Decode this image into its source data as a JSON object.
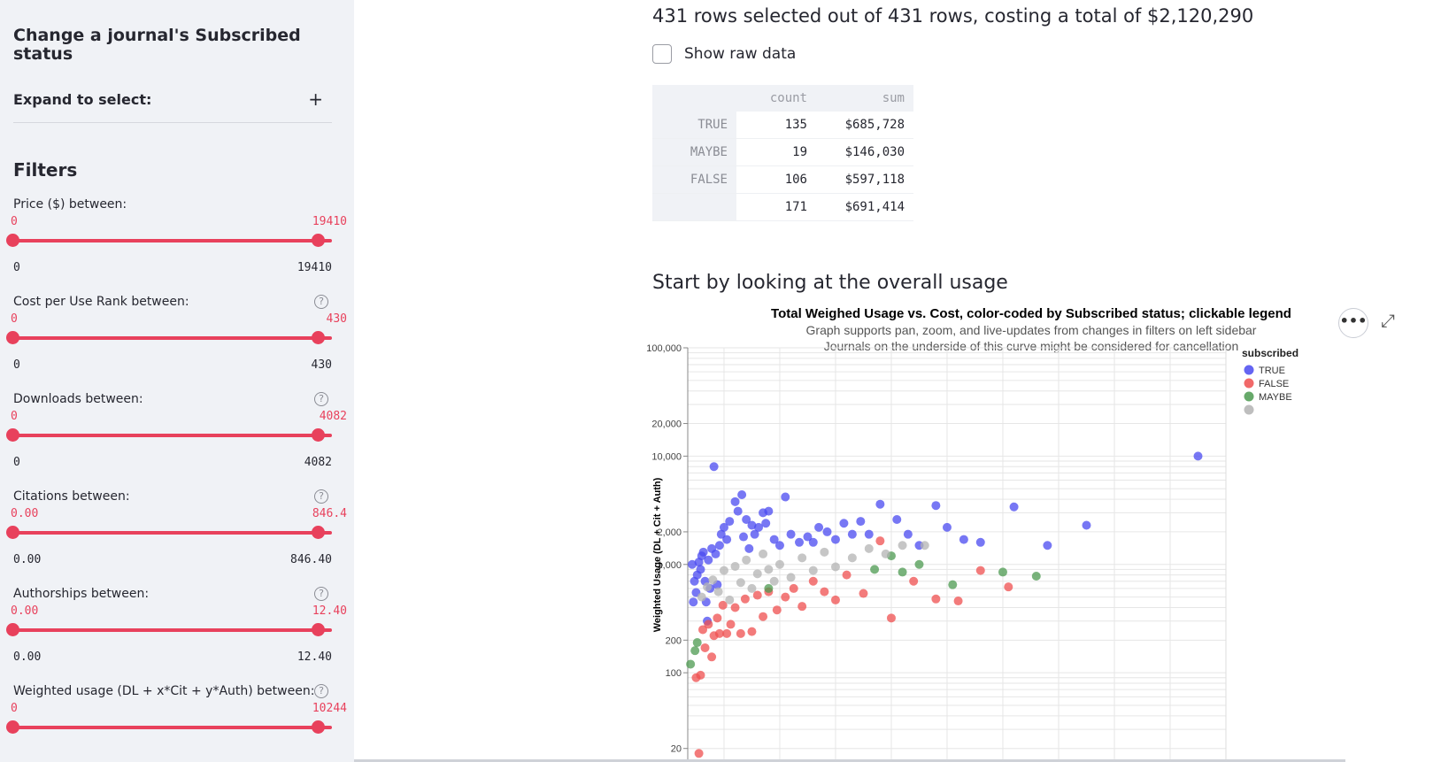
{
  "sidebar": {
    "title": "Change a journal's Subscribed status",
    "expander_label": "Expand to select:",
    "expander_icon": "+",
    "filters_title": "Filters",
    "help_glyph": "?",
    "sliders": [
      {
        "label": "Price ($) between:",
        "min_value": "0",
        "max_value": "19410",
        "range_min": "0",
        "range_max": "19410",
        "has_help": false
      },
      {
        "label": "Cost per Use Rank between:",
        "min_value": "0",
        "max_value": "430",
        "range_min": "0",
        "range_max": "430",
        "has_help": true
      },
      {
        "label": "Downloads between:",
        "min_value": "0",
        "max_value": "4082",
        "range_min": "0",
        "range_max": "4082",
        "has_help": true
      },
      {
        "label": "Citations between:",
        "min_value": "0.00",
        "max_value": "846.4",
        "range_min": "0.00",
        "range_max": "846.40",
        "has_help": true
      },
      {
        "label": "Authorships between:",
        "min_value": "0.00",
        "max_value": "12.40",
        "range_min": "0.00",
        "range_max": "12.40",
        "has_help": true
      },
      {
        "label": "Weighted usage (DL + x*Cit + y*Auth) between:",
        "min_value": "0",
        "max_value": "10244",
        "range_min": "",
        "range_max": "",
        "has_help": true
      }
    ]
  },
  "main": {
    "rows_title": "431 rows selected out of 431 rows, costing a total of $2,120,290",
    "raw_checkbox_label": "Show raw data",
    "raw_checked": false,
    "summary": {
      "headers": [
        "",
        "count",
        "sum"
      ],
      "rows": [
        [
          "TRUE",
          "135",
          "$685,728"
        ],
        [
          "MAYBE",
          "19",
          "$146,030"
        ],
        [
          "FALSE",
          "106",
          "$597,118"
        ],
        [
          "",
          "171",
          "$691,414"
        ]
      ]
    },
    "usage_title": "Start by looking at the overall usage",
    "menu_glyph": "•••",
    "expand_glyph": "⤢"
  },
  "chart_data": {
    "type": "scatter",
    "title": "Total Weighed Usage vs. Cost, color-coded by Subscribed status; clickable legend",
    "subtitle_lines": [
      "Graph supports pan, zoom, and live-updates from changes in filters on left sidebar",
      "Journals on the underside of this curve might be considered for cancellation"
    ],
    "ylabel": "Weighted Usage (DL + Cit + Auth)",
    "xlabel": "",
    "y_scale": "log",
    "ylim": [
      15,
      100000
    ],
    "y_ticks": [
      {
        "value": 100000,
        "label": "100,000"
      },
      {
        "value": 20000,
        "label": "20,000"
      },
      {
        "value": 10000,
        "label": "10,000"
      },
      {
        "value": 2000,
        "label": "2,000"
      },
      {
        "value": 1000,
        "label": "1,000"
      },
      {
        "value": 200,
        "label": "200"
      },
      {
        "value": 100,
        "label": "100"
      },
      {
        "value": 20,
        "label": "20"
      }
    ],
    "grid": true,
    "legend": {
      "title": "subscribed",
      "placement": "top-right"
    },
    "series": [
      {
        "name": "TRUE",
        "color": "#4a4af0",
        "points": [
          [
            0.43,
            1000
          ],
          [
            0.45,
            450
          ],
          [
            0.47,
            700
          ],
          [
            0.5,
            550
          ],
          [
            0.52,
            800
          ],
          [
            0.55,
            1050
          ],
          [
            0.58,
            900
          ],
          [
            0.6,
            1200
          ],
          [
            0.63,
            1300
          ],
          [
            0.66,
            700
          ],
          [
            0.68,
            450
          ],
          [
            0.7,
            300
          ],
          [
            0.72,
            1100
          ],
          [
            0.75,
            600
          ],
          [
            0.78,
            1400
          ],
          [
            0.82,
            8000
          ],
          [
            0.85,
            1250
          ],
          [
            0.88,
            650
          ],
          [
            0.92,
            1500
          ],
          [
            0.95,
            1900
          ],
          [
            1.0,
            2200
          ],
          [
            1.05,
            1700
          ],
          [
            1.1,
            2500
          ],
          [
            1.2,
            3800
          ],
          [
            1.25,
            3100
          ],
          [
            1.32,
            4400
          ],
          [
            1.35,
            1800
          ],
          [
            1.4,
            2600
          ],
          [
            1.45,
            1400
          ],
          [
            1.5,
            2300
          ],
          [
            1.55,
            1900
          ],
          [
            1.62,
            2200
          ],
          [
            1.7,
            3000
          ],
          [
            1.75,
            2400
          ],
          [
            1.8,
            3100
          ],
          [
            1.9,
            1700
          ],
          [
            2.0,
            1500
          ],
          [
            2.1,
            4200
          ],
          [
            2.2,
            1900
          ],
          [
            2.35,
            1600
          ],
          [
            2.5,
            1800
          ],
          [
            2.6,
            1600
          ],
          [
            2.7,
            2200
          ],
          [
            2.85,
            2000
          ],
          [
            3.0,
            1700
          ],
          [
            3.15,
            2400
          ],
          [
            3.3,
            1900
          ],
          [
            3.45,
            2500
          ],
          [
            3.6,
            1900
          ],
          [
            3.8,
            3600
          ],
          [
            4.1,
            2600
          ],
          [
            4.3,
            1900
          ],
          [
            4.5,
            1500
          ],
          [
            4.8,
            3500
          ],
          [
            5.0,
            2200
          ],
          [
            5.3,
            1700
          ],
          [
            5.6,
            1600
          ],
          [
            6.2,
            3400
          ],
          [
            6.8,
            1500
          ],
          [
            7.5,
            2300
          ],
          [
            9.5,
            10000
          ]
        ]
      },
      {
        "name": "FALSE",
        "color": "#ef4f4f",
        "points": [
          [
            0.5,
            90
          ],
          [
            0.55,
            18
          ],
          [
            0.58,
            95
          ],
          [
            0.62,
            250
          ],
          [
            0.66,
            170
          ],
          [
            0.72,
            280
          ],
          [
            0.78,
            140
          ],
          [
            0.82,
            220
          ],
          [
            0.88,
            320
          ],
          [
            0.92,
            230
          ],
          [
            0.98,
            420
          ],
          [
            1.05,
            230
          ],
          [
            1.12,
            280
          ],
          [
            1.2,
            400
          ],
          [
            1.3,
            230
          ],
          [
            1.38,
            480
          ],
          [
            1.5,
            240
          ],
          [
            1.6,
            520
          ],
          [
            1.7,
            330
          ],
          [
            1.8,
            560
          ],
          [
            1.95,
            380
          ],
          [
            2.1,
            500
          ],
          [
            2.25,
            600
          ],
          [
            2.4,
            410
          ],
          [
            2.6,
            700
          ],
          [
            2.8,
            560
          ],
          [
            3.0,
            470
          ],
          [
            3.2,
            800
          ],
          [
            3.5,
            540
          ],
          [
            3.8,
            1650
          ],
          [
            4.0,
            320
          ],
          [
            4.4,
            700
          ],
          [
            4.8,
            480
          ],
          [
            5.2,
            460
          ],
          [
            5.6,
            880
          ],
          [
            6.1,
            620
          ]
        ]
      },
      {
        "name": "MAYBE",
        "color": "#4c9a50",
        "points": [
          [
            0.4,
            120
          ],
          [
            0.48,
            160
          ],
          [
            0.52,
            190
          ],
          [
            1.8,
            600
          ],
          [
            3.7,
            900
          ],
          [
            4.0,
            1200
          ],
          [
            4.2,
            850
          ],
          [
            4.5,
            1000
          ],
          [
            5.1,
            650
          ],
          [
            6.0,
            850
          ],
          [
            6.6,
            780
          ]
        ]
      },
      {
        "name": "",
        "color": "#b3b3b3",
        "points": [
          [
            0.6,
            500
          ],
          [
            0.7,
            620
          ],
          [
            0.8,
            720
          ],
          [
            0.9,
            560
          ],
          [
            1.0,
            880
          ],
          [
            1.1,
            470
          ],
          [
            1.2,
            960
          ],
          [
            1.3,
            680
          ],
          [
            1.4,
            1100
          ],
          [
            1.5,
            600
          ],
          [
            1.6,
            820
          ],
          [
            1.7,
            1250
          ],
          [
            1.8,
            900
          ],
          [
            1.9,
            700
          ],
          [
            2.0,
            1000
          ],
          [
            2.2,
            760
          ],
          [
            2.4,
            1150
          ],
          [
            2.6,
            880
          ],
          [
            2.8,
            1300
          ],
          [
            3.0,
            950
          ],
          [
            3.3,
            1150
          ],
          [
            3.6,
            1400
          ],
          [
            3.9,
            1250
          ],
          [
            4.2,
            1500
          ],
          [
            4.6,
            1500
          ]
        ]
      }
    ]
  }
}
